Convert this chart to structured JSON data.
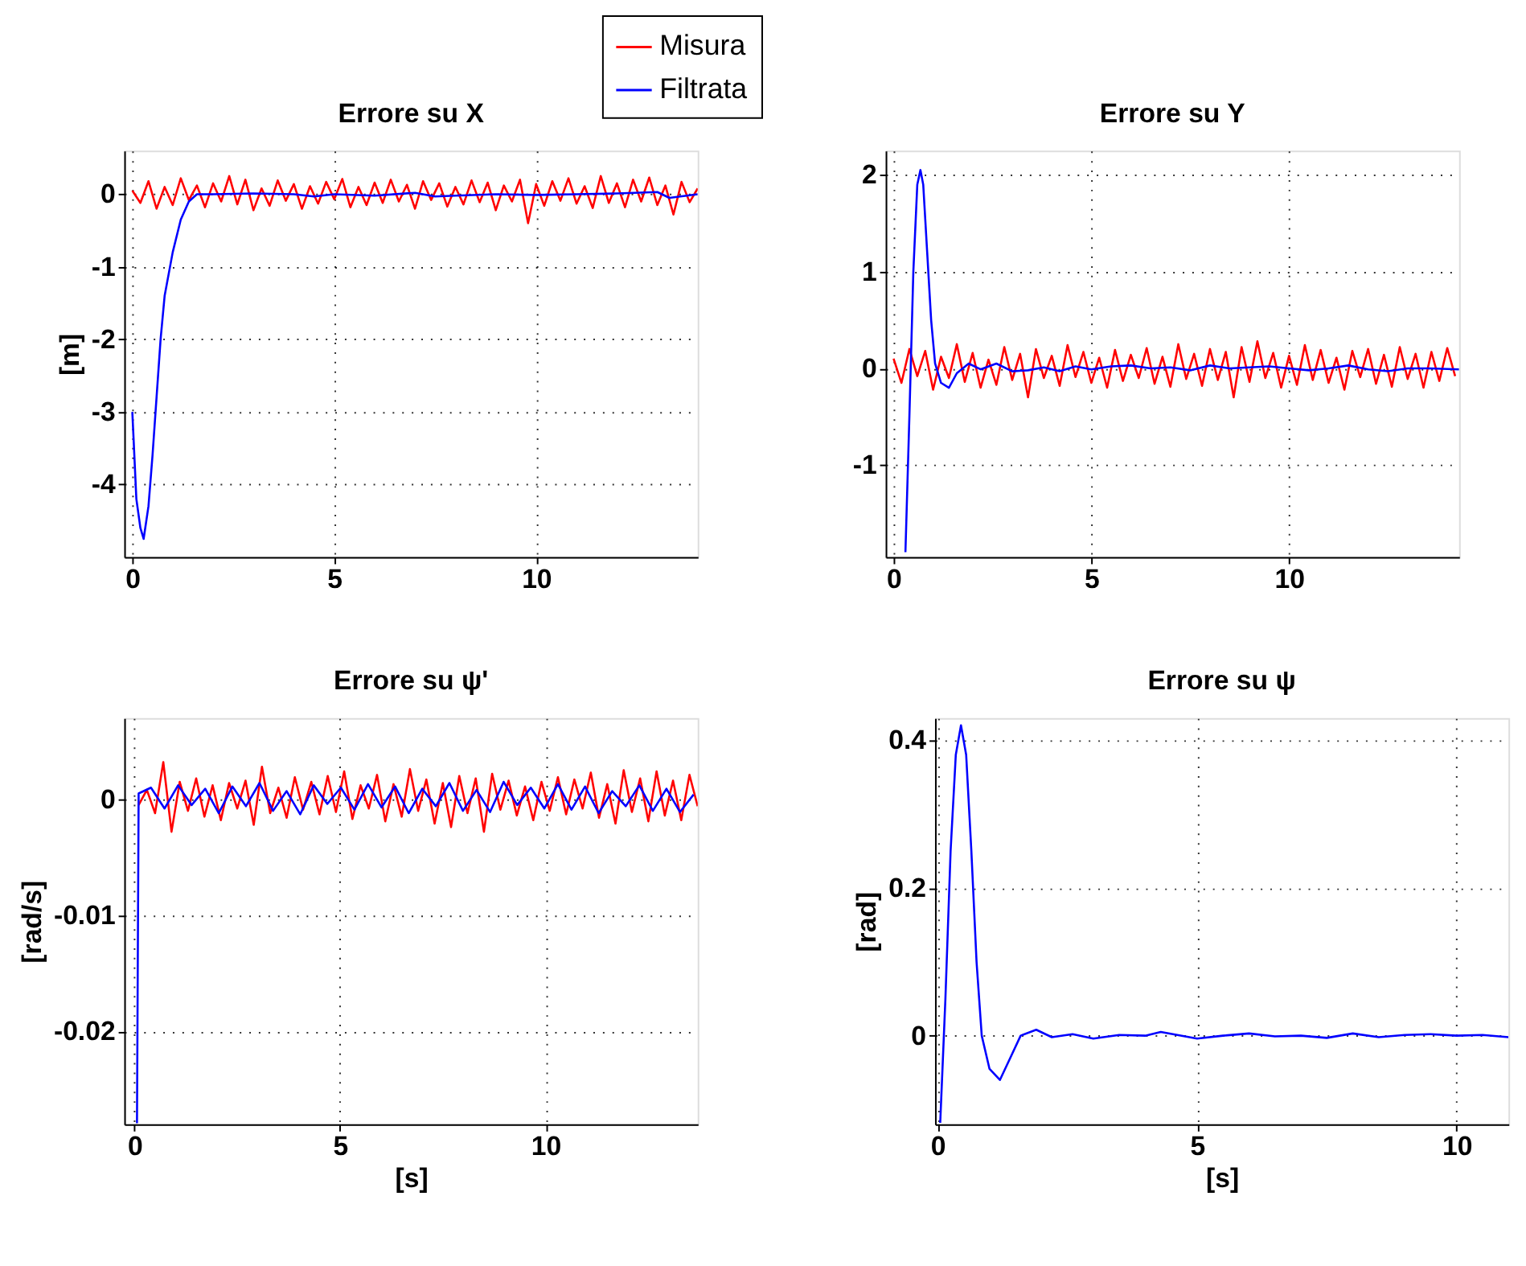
{
  "chart_data": [
    {
      "type": "line",
      "title": "Errore su X",
      "ylabel": "[m]",
      "xlim": [
        -0.2,
        14
      ],
      "ylim": [
        -5,
        0.6
      ],
      "xticks": [
        0,
        5,
        10
      ],
      "yticks": [
        -4,
        -3,
        -2,
        -1,
        0
      ],
      "grid": true,
      "legend": "top right",
      "series": [
        {
          "name": "Misura",
          "color": "#ff0000",
          "x": [
            0,
            0.2,
            0.4,
            0.6,
            0.8,
            1,
            1.2,
            1.4,
            1.6,
            1.8,
            2,
            2.2,
            2.4,
            2.6,
            2.8,
            3,
            3.2,
            3.4,
            3.6,
            3.8,
            4,
            4.2,
            4.4,
            4.6,
            4.8,
            5,
            5.2,
            5.4,
            5.6,
            5.8,
            6,
            6.2,
            6.4,
            6.6,
            6.8,
            7,
            7.2,
            7.4,
            7.6,
            7.8,
            8,
            8.2,
            8.4,
            8.6,
            8.8,
            9,
            9.2,
            9.4,
            9.6,
            9.8,
            10,
            10.2,
            10.4,
            10.6,
            10.8,
            11,
            11.2,
            11.4,
            11.6,
            11.8,
            12,
            12.2,
            12.4,
            12.6,
            12.8,
            13,
            13.2,
            13.4,
            13.6,
            13.8,
            14
          ],
          "values": [
            0.05,
            -0.12,
            0.18,
            -0.2,
            0.1,
            -0.15,
            0.22,
            -0.08,
            0.12,
            -0.18,
            0.15,
            -0.1,
            0.25,
            -0.14,
            0.2,
            -0.22,
            0.08,
            -0.16,
            0.19,
            -0.09,
            0.14,
            -0.2,
            0.11,
            -0.13,
            0.17,
            -0.07,
            0.21,
            -0.18,
            0.1,
            -0.15,
            0.16,
            -0.12,
            0.2,
            -0.1,
            0.13,
            -0.2,
            0.18,
            -0.08,
            0.15,
            -0.17,
            0.1,
            -0.14,
            0.19,
            -0.11,
            0.16,
            -0.22,
            0.12,
            -0.1,
            0.2,
            -0.4,
            0.14,
            -0.16,
            0.18,
            -0.09,
            0.22,
            -0.13,
            0.11,
            -0.19,
            0.25,
            -0.12,
            0.15,
            -0.18,
            0.2,
            -0.1,
            0.23,
            -0.15,
            0.12,
            -0.28,
            0.17,
            -0.11,
            0.08
          ]
        },
        {
          "name": "Filtrata",
          "color": "#0000ff",
          "x": [
            0,
            0.1,
            0.2,
            0.28,
            0.4,
            0.5,
            0.6,
            0.7,
            0.8,
            1.0,
            1.2,
            1.4,
            1.6,
            2,
            3,
            4,
            4.5,
            5,
            6,
            7,
            7.5,
            8,
            9,
            10,
            11,
            12,
            13,
            13.3,
            14
          ],
          "values": [
            -3,
            -4.2,
            -4.6,
            -4.75,
            -4.3,
            -3.6,
            -2.8,
            -2.0,
            -1.4,
            -0.8,
            -0.35,
            -0.1,
            0,
            0,
            0.01,
            0,
            -0.03,
            0,
            -0.02,
            0.02,
            -0.03,
            -0.02,
            0,
            -0.01,
            0,
            0.01,
            0.03,
            -0.05,
            0
          ]
        }
      ]
    },
    {
      "type": "line",
      "title": "Errore su Y",
      "xlim": [
        -0.2,
        14.3
      ],
      "ylim": [
        -1.95,
        2.25
      ],
      "xticks": [
        0,
        5,
        10
      ],
      "yticks": [
        -1,
        0,
        1,
        2
      ],
      "grid": true,
      "series": [
        {
          "color": "#ff0000",
          "x": [
            0,
            0.2,
            0.4,
            0.6,
            0.8,
            1,
            1.2,
            1.4,
            1.6,
            1.8,
            2,
            2.2,
            2.4,
            2.6,
            2.8,
            3,
            3.2,
            3.4,
            3.6,
            3.8,
            4,
            4.2,
            4.4,
            4.6,
            4.8,
            5,
            5.2,
            5.4,
            5.6,
            5.8,
            6,
            6.2,
            6.4,
            6.6,
            6.8,
            7,
            7.2,
            7.4,
            7.6,
            7.8,
            8,
            8.2,
            8.4,
            8.6,
            8.8,
            9,
            9.2,
            9.4,
            9.6,
            9.8,
            10,
            10.2,
            10.4,
            10.6,
            10.8,
            11,
            11.2,
            11.4,
            11.6,
            11.8,
            12,
            12.2,
            12.4,
            12.6,
            12.8,
            13,
            13.2,
            13.4,
            13.6,
            13.8,
            14,
            14.2
          ],
          "values": [
            0.1,
            -0.15,
            0.2,
            -0.08,
            0.18,
            -0.22,
            0.12,
            -0.1,
            0.25,
            -0.14,
            0.16,
            -0.2,
            0.09,
            -0.17,
            0.22,
            -0.12,
            0.15,
            -0.3,
            0.2,
            -0.1,
            0.13,
            -0.18,
            0.24,
            -0.09,
            0.17,
            -0.15,
            0.11,
            -0.2,
            0.19,
            -0.13,
            0.14,
            -0.1,
            0.21,
            -0.16,
            0.12,
            -0.19,
            0.25,
            -0.11,
            0.15,
            -0.18,
            0.2,
            -0.12,
            0.17,
            -0.3,
            0.22,
            -0.14,
            0.28,
            -0.1,
            0.16,
            -0.2,
            0.13,
            -0.17,
            0.24,
            -0.12,
            0.19,
            -0.15,
            0.11,
            -0.22,
            0.18,
            -0.09,
            0.2,
            -0.16,
            0.14,
            -0.19,
            0.22,
            -0.11,
            0.15,
            -0.2,
            0.17,
            -0.13,
            0.21,
            -0.08
          ]
        },
        {
          "color": "#0000ff",
          "x": [
            0.3,
            0.4,
            0.5,
            0.6,
            0.68,
            0.75,
            0.85,
            0.95,
            1.05,
            1.2,
            1.4,
            1.6,
            1.9,
            2.2,
            2.6,
            3,
            3.4,
            3.8,
            4.2,
            4.6,
            5,
            5.5,
            6,
            6.5,
            7,
            7.5,
            8,
            8.5,
            9,
            9.5,
            10,
            10.5,
            11,
            11.5,
            12,
            12.5,
            13,
            13.5,
            14.3
          ],
          "values": [
            -1.9,
            -0.5,
            1.0,
            1.9,
            2.05,
            1.9,
            1.2,
            0.5,
            0.05,
            -0.15,
            -0.2,
            -0.05,
            0.05,
            -0.01,
            0.05,
            -0.03,
            -0.02,
            0.01,
            -0.03,
            0.02,
            -0.01,
            0.02,
            0.03,
            0,
            0.01,
            -0.02,
            0.03,
            0,
            0.01,
            0.02,
            0,
            -0.02,
            0,
            0.03,
            -0.01,
            -0.03,
            0,
            0,
            -0.01
          ]
        }
      ]
    },
    {
      "type": "line",
      "title": "Errore su ψ'",
      "xlabel": "[s]",
      "ylabel": "[rad/s]",
      "xlim": [
        -0.25,
        13.7
      ],
      "ylim": [
        -0.028,
        0.007
      ],
      "xticks": [
        0,
        5,
        10
      ],
      "yticks": [
        -0.02,
        -0.01,
        0
      ],
      "grid": true,
      "series": [
        {
          "color": "#ff0000",
          "x": [
            0.1,
            0.3,
            0.5,
            0.7,
            0.9,
            1.1,
            1.3,
            1.5,
            1.7,
            1.9,
            2.1,
            2.3,
            2.5,
            2.7,
            2.9,
            3.1,
            3.3,
            3.5,
            3.7,
            3.9,
            4.1,
            4.3,
            4.5,
            4.7,
            4.9,
            5.1,
            5.3,
            5.5,
            5.7,
            5.9,
            6.1,
            6.3,
            6.5,
            6.7,
            6.9,
            7.1,
            7.3,
            7.5,
            7.7,
            7.9,
            8.1,
            8.3,
            8.5,
            8.7,
            8.9,
            9.1,
            9.3,
            9.5,
            9.7,
            9.9,
            10.1,
            10.3,
            10.5,
            10.7,
            10.9,
            11.1,
            11.3,
            11.5,
            11.7,
            11.9,
            12.1,
            12.3,
            12.5,
            12.7,
            12.9,
            13.1,
            13.3,
            13.5,
            13.7
          ],
          "values": [
            -0.0005,
            0.0008,
            -0.0012,
            0.0032,
            -0.0028,
            0.0015,
            -0.001,
            0.0018,
            -0.0015,
            0.0012,
            -0.0018,
            0.0014,
            -0.0008,
            0.0016,
            -0.0022,
            0.0028,
            -0.0012,
            0.001,
            -0.0016,
            0.0019,
            -0.0009,
            0.0015,
            -0.0013,
            0.002,
            -0.0011,
            0.0024,
            -0.0017,
            0.0012,
            -0.0008,
            0.0021,
            -0.0019,
            0.0013,
            -0.0015,
            0.0026,
            -0.001,
            0.0017,
            -0.0021,
            0.0014,
            -0.0024,
            0.002,
            -0.0012,
            0.0018,
            -0.0028,
            0.0022,
            -0.0009,
            0.0016,
            -0.0014,
            0.0011,
            -0.0018,
            0.0015,
            -0.001,
            0.0019,
            -0.0013,
            0.0017,
            -0.0008,
            0.0023,
            -0.0016,
            0.0013,
            -0.0021,
            0.0025,
            -0.0011,
            0.0018,
            -0.0019,
            0.0024,
            -0.0014,
            0.0016,
            -0.0018,
            0.0021,
            -0.0006
          ]
        },
        {
          "color": "#0000ff",
          "x": [
            0.06,
            0.1,
            0.4,
            0.73,
            1.06,
            1.39,
            1.72,
            2.05,
            2.38,
            2.71,
            3.04,
            3.37,
            3.7,
            4.03,
            4.36,
            4.69,
            5.02,
            5.35,
            5.68,
            6.01,
            6.34,
            6.67,
            7.0,
            7.33,
            7.66,
            7.99,
            8.32,
            8.65,
            8.98,
            9.31,
            9.64,
            9.97,
            10.3,
            10.63,
            10.96,
            11.29,
            11.62,
            11.95,
            12.28,
            12.61,
            12.94,
            13.27,
            13.6
          ],
          "values": [
            -0.0279,
            0.0005,
            0.001,
            -0.0008,
            0.0012,
            -0.0005,
            0.0009,
            -0.0012,
            0.0011,
            -0.0006,
            0.0014,
            -0.001,
            0.0007,
            -0.0013,
            0.0012,
            -0.0004,
            0.001,
            -0.0009,
            0.0013,
            -0.0007,
            0.0011,
            -0.0012,
            0.0009,
            -0.0006,
            0.0014,
            -0.001,
            0.0008,
            -0.0011,
            0.0015,
            -0.0005,
            0.001,
            -0.0008,
            0.0013,
            -0.0009,
            0.0011,
            -0.0012,
            0.0007,
            -0.0006,
            0.0012,
            -0.001,
            0.0009,
            -0.0011,
            0.0004
          ]
        }
      ]
    },
    {
      "type": "line",
      "title": "Errore su ψ",
      "xlabel": "[s]",
      "ylabel": "[rad]",
      "xlim": [
        -0.05,
        11
      ],
      "ylim": [
        -0.12,
        0.43
      ],
      "xticks": [
        0,
        5,
        10
      ],
      "yticks": [
        0,
        0.2,
        0.4
      ],
      "grid": true,
      "series": [
        {
          "color": "#0000ff",
          "x": [
            0.05,
            0.15,
            0.25,
            0.35,
            0.45,
            0.55,
            0.65,
            0.75,
            0.85,
            1.0,
            1.2,
            1.4,
            1.6,
            1.9,
            2.2,
            2.6,
            3,
            3.5,
            4,
            4.3,
            5,
            5.5,
            6,
            6.5,
            7,
            7.5,
            8,
            8.5,
            9,
            9.5,
            10,
            10.5,
            11
          ],
          "values": [
            -0.118,
            0.05,
            0.25,
            0.38,
            0.42,
            0.38,
            0.25,
            0.1,
            0,
            -0.045,
            -0.06,
            -0.03,
            0,
            0.008,
            -0.002,
            0.002,
            -0.004,
            0.001,
            0,
            0.005,
            -0.004,
            0,
            0.003,
            -0.001,
            0,
            -0.003,
            0.003,
            -0.002,
            0.001,
            0.002,
            0,
            0.001,
            -0.002
          ]
        }
      ]
    }
  ]
}
